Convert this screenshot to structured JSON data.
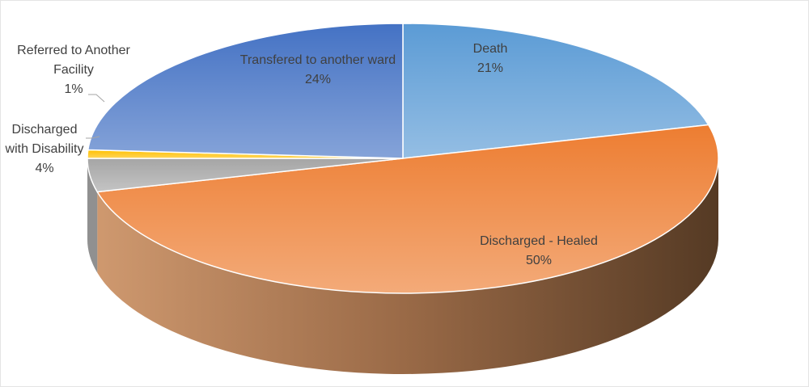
{
  "chart_data": {
    "type": "pie",
    "categories": [
      "Death",
      "Discharged - Healed",
      "Discharged with Disability",
      "Referred to Another Facility",
      "Transfered to another ward"
    ],
    "values": [
      21,
      50,
      4,
      1,
      24
    ],
    "value_labels": [
      "21%",
      "50%",
      "4%",
      "1%",
      "24%"
    ],
    "colors": [
      "#5b9bd5",
      "#ed7d31",
      "#a5a5a5",
      "#ffc000",
      "#4472c4"
    ],
    "three_d": true
  }
}
